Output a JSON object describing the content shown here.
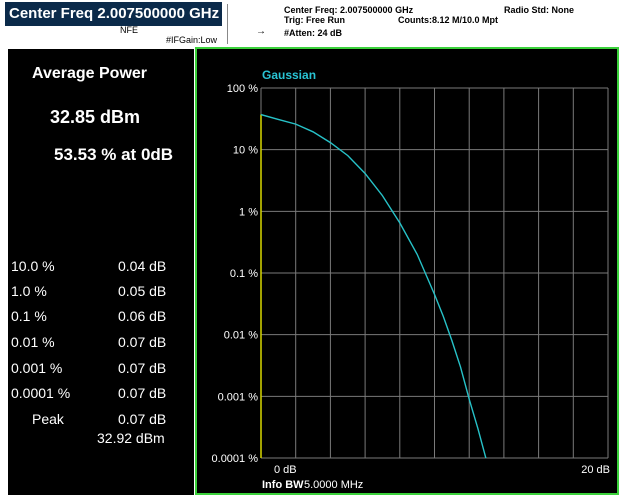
{
  "header": {
    "center_freq_title": "Center Freq 2.007500000 GHz",
    "nfe": "NFE",
    "if_gain": "#IFGain:Low",
    "center_freq_small": "Center Freq: 2.007500000 GHz",
    "trig": "Trig: Free Run",
    "atten": "#Atten: 24 dB",
    "counts": "Counts:8.12 M/10.0 Mpt",
    "radio_std": "Radio Std: None"
  },
  "metrics": {
    "avg_power_label": "Average Power",
    "avg_power_value": "32.85 dBm",
    "percent_at_0db": "53.53 % at 0dB"
  },
  "ccdf_table": [
    {
      "prob": "10.0 %",
      "value": "0.04 dB"
    },
    {
      "prob": "1.0 %",
      "value": "0.05 dB"
    },
    {
      "prob": "0.1 %",
      "value": "0.06 dB"
    },
    {
      "prob": "0.01 %",
      "value": "0.07 dB"
    },
    {
      "prob": "0.001 %",
      "value": "0.07 dB"
    },
    {
      "prob": "0.0001 %",
      "value": "0.07 dB"
    }
  ],
  "peak": {
    "label": "Peak",
    "value_db": "0.07 dB",
    "value_dbm": "32.92 dBm"
  },
  "plot": {
    "trace_label": "Gaussian",
    "x_start": "0 dB",
    "x_end": "20 dB",
    "info_bw_label": "Info BW",
    "info_bw_value": "5.0000 MHz",
    "y_ticks": [
      "100 %",
      "10 %",
      "1 %",
      "0.1 %",
      "0.01 %",
      "0.001 %",
      "0.0001 %"
    ]
  },
  "chart_data": {
    "type": "line",
    "title": "Gaussian",
    "xlabel": "",
    "ylabel": "",
    "x_range": [
      0,
      20
    ],
    "y_scale": "log",
    "ylim": [
      0.0001,
      100
    ],
    "grid": true,
    "series": [
      {
        "name": "Gaussian",
        "x": [
          0,
          1,
          2,
          3,
          4,
          5,
          6,
          7,
          8,
          9,
          10,
          10.5,
          11,
          11.5,
          12,
          12.5,
          13,
          13.4
        ],
        "y": [
          37,
          31,
          26,
          19.5,
          13,
          8,
          4.1,
          1.8,
          0.65,
          0.2,
          0.045,
          0.02,
          0.008,
          0.003,
          0.0009,
          0.0003,
          9e-05,
          3e-05
        ]
      }
    ],
    "colors": {
      "trace": "#27c2c8",
      "grid": "#7a7a7a",
      "label": "#29c4d4",
      "marker_line": "#d8d800"
    }
  }
}
